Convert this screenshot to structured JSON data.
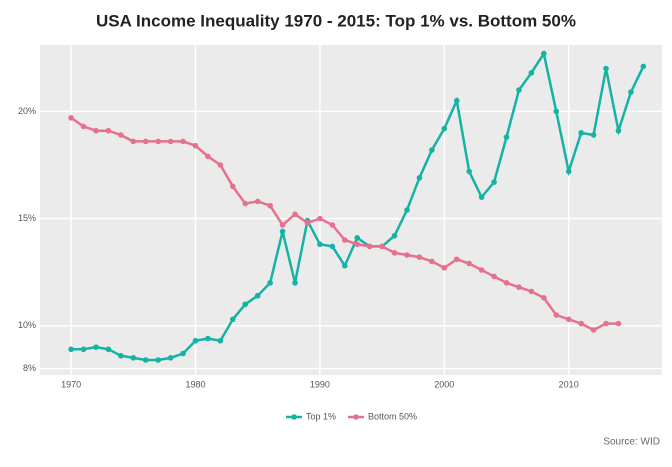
{
  "chart_data": {
    "type": "line",
    "title": "USA Income Inequality 1970 - 2015: Top 1% vs. Bottom 50%",
    "source": "Source: WID",
    "x": [
      1970,
      1971,
      1972,
      1973,
      1974,
      1975,
      1976,
      1977,
      1978,
      1979,
      1980,
      1981,
      1982,
      1983,
      1984,
      1985,
      1986,
      1987,
      1988,
      1989,
      1990,
      1991,
      1992,
      1993,
      1994,
      1995,
      1996,
      1997,
      1998,
      1999,
      2000,
      2001,
      2002,
      2003,
      2004,
      2005,
      2006,
      2007,
      2008,
      2009,
      2010,
      2011,
      2012,
      2013,
      2014,
      2015,
      2016
    ],
    "series": [
      {
        "name": "Top 1%",
        "color": "#14b3a4",
        "values": [
          8.9,
          8.9,
          9.0,
          8.9,
          8.6,
          8.5,
          8.4,
          8.4,
          8.5,
          8.7,
          9.3,
          9.4,
          9.3,
          10.3,
          11.0,
          11.4,
          12.0,
          14.4,
          12.0,
          14.9,
          13.8,
          13.7,
          12.8,
          14.1,
          13.7,
          13.7,
          14.2,
          15.4,
          16.9,
          18.2,
          19.2,
          20.5,
          17.2,
          16.0,
          16.7,
          18.8,
          21.0,
          21.8,
          22.7,
          20.0,
          17.2,
          19.0,
          18.9,
          22.0,
          19.1,
          20.9,
          22.1
        ]
      },
      {
        "name": "Bottom 50%",
        "color": "#e8708f",
        "values": [
          19.7,
          19.3,
          19.1,
          19.1,
          18.9,
          18.6,
          18.6,
          18.6,
          18.6,
          18.6,
          18.4,
          17.9,
          17.5,
          16.5,
          15.7,
          15.8,
          15.6,
          14.7,
          15.2,
          14.8,
          15.0,
          14.7,
          14.0,
          13.8,
          13.7,
          13.7,
          13.4,
          13.3,
          13.2,
          13.0,
          12.7,
          13.1,
          12.9,
          12.6,
          12.3,
          12.0,
          11.8,
          11.6,
          11.3,
          10.5,
          10.3,
          10.1,
          9.8,
          10.1,
          10.1,
          null,
          null
        ]
      }
    ],
    "xlim": [
      1967.5,
      2017.5
    ],
    "xticks": [
      1970,
      1980,
      1990,
      2000,
      2010
    ],
    "ylim": [
      7.7,
      23.1
    ],
    "yticks": [
      {
        "value": 8,
        "label": "8%"
      },
      {
        "value": 10,
        "label": "10%"
      },
      {
        "value": 15,
        "label": "15%"
      },
      {
        "value": 20,
        "label": "20%"
      }
    ],
    "grid": true
  }
}
